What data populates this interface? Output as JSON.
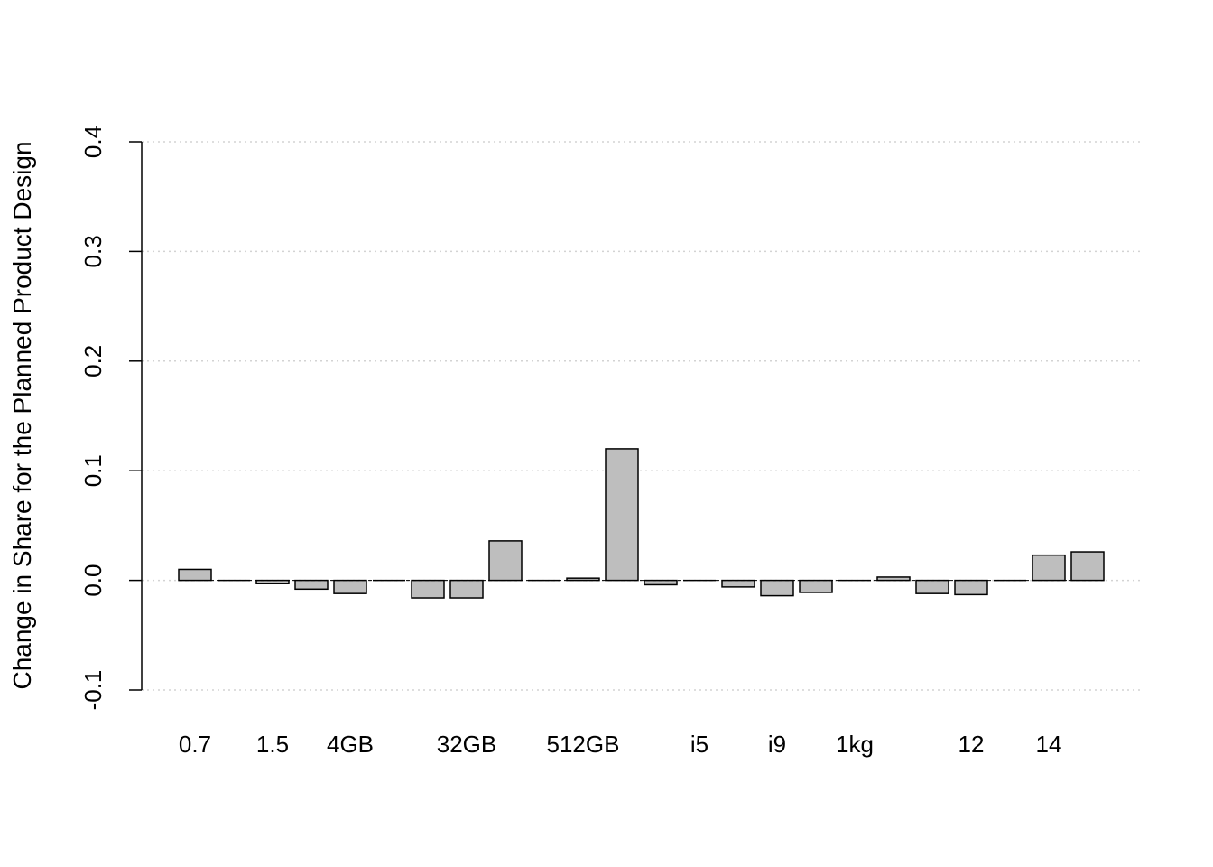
{
  "chart_data": {
    "type": "bar",
    "title": "",
    "xlabel": "",
    "ylabel": "Change in Share for the Planned Product Design",
    "ylim": [
      -0.1,
      0.4
    ],
    "yticks": [
      -0.1,
      0.0,
      0.1,
      0.2,
      0.3,
      0.4
    ],
    "ytick_labels": [
      "-0.1",
      "0.0",
      "0.1",
      "0.2",
      "0.3",
      "0.4"
    ],
    "grid": "horizontal dotted",
    "categories": [
      "0.7",
      "",
      "1.5",
      "",
      "4GB",
      "",
      "",
      "32GB",
      "",
      "",
      "512GB",
      "",
      "",
      "i5",
      "",
      "i9",
      "",
      "1kg",
      "",
      "",
      "12",
      "",
      "14",
      ""
    ],
    "values": [
      0.01,
      0.0,
      -0.003,
      -0.008,
      -0.012,
      0.0,
      -0.016,
      -0.016,
      0.036,
      0.0,
      0.002,
      0.12,
      -0.004,
      0.0,
      -0.006,
      -0.014,
      -0.011,
      0.0,
      0.003,
      -0.012,
      -0.013,
      0.0,
      0.023,
      0.026
    ],
    "colors": {
      "bar": "#bebebe",
      "outline": "#000000",
      "grid": "#d3d3d3"
    }
  }
}
